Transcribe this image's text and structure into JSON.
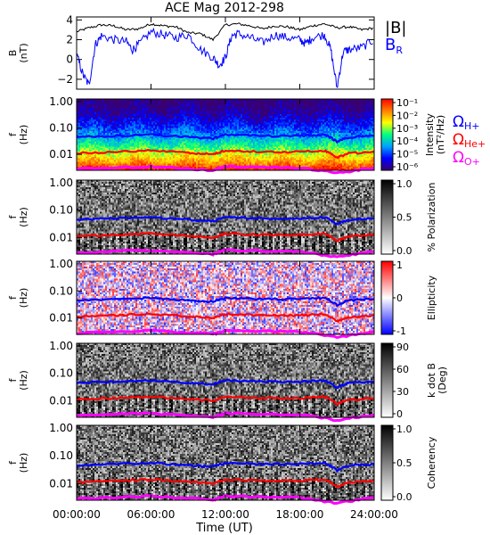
{
  "chart_data": {
    "title": "ACE Mag 2012-298",
    "type": "spectrogram-stack",
    "xlabel": "Time (UT)",
    "x_ticks": [
      "00:00:00",
      "06:00:00",
      "12:00:00",
      "18:00:00",
      "24:00:00"
    ],
    "x_range_hours": [
      0,
      24
    ],
    "panels": [
      {
        "id": "b-field",
        "type": "line",
        "ylabel": "B",
        "yunit": "(nT)",
        "ylim": [
          -3,
          4.3
        ],
        "y_ticks": [
          -2,
          0,
          2,
          4
        ],
        "series": [
          {
            "name": "|B|",
            "color": "#000000",
            "points": [
              [
                0,
                2.8
              ],
              [
                1,
                3.2
              ],
              [
                2,
                3.5
              ],
              [
                3,
                3.4
              ],
              [
                4,
                3.0
              ],
              [
                5,
                3.1
              ],
              [
                6,
                3.6
              ],
              [
                7,
                3.4
              ],
              [
                8,
                3.3
              ],
              [
                9,
                2.7
              ],
              [
                10,
                2.6
              ],
              [
                11,
                2.0
              ],
              [
                12,
                3.5
              ],
              [
                13,
                3.6
              ],
              [
                14,
                3.4
              ],
              [
                15,
                3.1
              ],
              [
                16,
                3.4
              ],
              [
                17,
                3.3
              ],
              [
                18,
                3.0
              ],
              [
                19,
                3.4
              ],
              [
                20,
                3.6
              ],
              [
                21,
                3.2
              ],
              [
                22,
                3.3
              ],
              [
                23,
                3.0
              ],
              [
                24,
                3.2
              ]
            ]
          },
          {
            "name": "B",
            "name_subscript": "R",
            "color": "#0000ff",
            "points": [
              [
                0,
                0.5
              ],
              [
                0.5,
                -1.5
              ],
              [
                1,
                -2.6
              ],
              [
                1.5,
                1.5
              ],
              [
                2,
                2.4
              ],
              [
                3,
                2.0
              ],
              [
                4,
                1.8
              ],
              [
                4.5,
                1.0
              ],
              [
                5,
                1.5
              ],
              [
                6,
                2.8
              ],
              [
                7,
                2.5
              ],
              [
                8,
                2.2
              ],
              [
                9,
                2.5
              ],
              [
                10,
                1.0
              ],
              [
                11,
                0.2
              ],
              [
                11.5,
                -0.6
              ],
              [
                12,
                0.2
              ],
              [
                12.5,
                2.4
              ],
              [
                13,
                2.6
              ],
              [
                14,
                2.2
              ],
              [
                15,
                1.7
              ],
              [
                16,
                2.5
              ],
              [
                17,
                2.2
              ],
              [
                18,
                2.0
              ],
              [
                18.5,
                1.6
              ],
              [
                19,
                2.2
              ],
              [
                20,
                2.5
              ],
              [
                20.5,
                1.0
              ],
              [
                21,
                -2.9
              ],
              [
                21.5,
                0.8
              ],
              [
                22,
                1.0
              ],
              [
                23,
                1.2
              ],
              [
                24,
                2.0
              ]
            ]
          }
        ]
      },
      {
        "id": "intensity",
        "type": "heatmap",
        "ylabel": "f",
        "yunit": "(Hz)",
        "y_ticks": [
          "1.00",
          "0.10",
          "0.01"
        ],
        "colorbar": {
          "label": "Intensity",
          "unit": "(nT²/Hz)",
          "ticks": [
            "10⁻¹",
            "10⁻²",
            "10⁻³",
            "10⁻⁴",
            "10⁻⁵",
            "10⁻⁶"
          ],
          "colors": [
            "#3a0070",
            "#0000ff",
            "#00a0ff",
            "#00ff80",
            "#ffff00",
            "#ff8000",
            "#ff0000"
          ]
        }
      },
      {
        "id": "polarization",
        "type": "heatmap",
        "ylabel": "f",
        "yunit": "(Hz)",
        "y_ticks": [
          "1.00",
          "0.10",
          "0.01"
        ],
        "colorbar": {
          "label": "% Polarization",
          "ticks": [
            "1.0",
            "0.5",
            "0.0"
          ],
          "colors": [
            "#000000",
            "#ffffff"
          ]
        }
      },
      {
        "id": "ellipticity",
        "type": "heatmap",
        "ylabel": "f",
        "yunit": "(Hz)",
        "y_ticks": [
          "1.00",
          "0.10",
          "0.01"
        ],
        "colorbar": {
          "label": "Ellipticity",
          "ticks": [
            "1",
            "0",
            "-1"
          ],
          "colors": [
            "#ff0000",
            "#ffffff",
            "#0000ff"
          ]
        }
      },
      {
        "id": "kdotb",
        "type": "heatmap",
        "ylabel": "f",
        "yunit": "(Hz)",
        "y_ticks": [
          "1.00",
          "0.10",
          "0.01"
        ],
        "colorbar": {
          "label": "k dot B",
          "unit": "(Deg)",
          "ticks": [
            "90",
            "60",
            "30",
            "0"
          ],
          "colors": [
            "#000000",
            "#ffffff"
          ]
        }
      },
      {
        "id": "coherency",
        "type": "heatmap",
        "ylabel": "f",
        "yunit": "(Hz)",
        "y_ticks": [
          "1.00",
          "0.10",
          "0.01"
        ],
        "colorbar": {
          "label": "Coherency",
          "ticks": [
            "1.0",
            "0.5",
            "0.0"
          ],
          "colors": [
            "#000000",
            "#ffffff"
          ]
        }
      }
    ],
    "gyro_legend": [
      {
        "symbol": "Ω",
        "sub": "H+",
        "color": "#0000ff"
      },
      {
        "symbol": "Ω",
        "sub": "He+",
        "color": "#ff0000"
      },
      {
        "symbol": "Ω",
        "sub": "O+",
        "color": "#ff00ff"
      }
    ],
    "gyrofrequency_hz": {
      "H+": [
        [
          0,
          0.045
        ],
        [
          3,
          0.05
        ],
        [
          6,
          0.055
        ],
        [
          9,
          0.045
        ],
        [
          11,
          0.04
        ],
        [
          12,
          0.055
        ],
        [
          15,
          0.05
        ],
        [
          18,
          0.05
        ],
        [
          20,
          0.055
        ],
        [
          21,
          0.03
        ],
        [
          22,
          0.045
        ],
        [
          24,
          0.05
        ]
      ],
      "He+": [
        [
          0,
          0.011
        ],
        [
          3,
          0.0125
        ],
        [
          6,
          0.014
        ],
        [
          9,
          0.0115
        ],
        [
          11,
          0.01
        ],
        [
          12,
          0.014
        ],
        [
          15,
          0.0125
        ],
        [
          18,
          0.0125
        ],
        [
          20,
          0.014
        ],
        [
          21,
          0.0075
        ],
        [
          22,
          0.011
        ],
        [
          24,
          0.0125
        ]
      ],
      "O+": [
        [
          0,
          0.0028
        ],
        [
          6,
          0.0035
        ],
        [
          11,
          0.0025
        ],
        [
          12,
          0.0035
        ],
        [
          18,
          0.0031
        ],
        [
          21,
          0.0019
        ],
        [
          24,
          0.0031
        ]
      ]
    }
  }
}
